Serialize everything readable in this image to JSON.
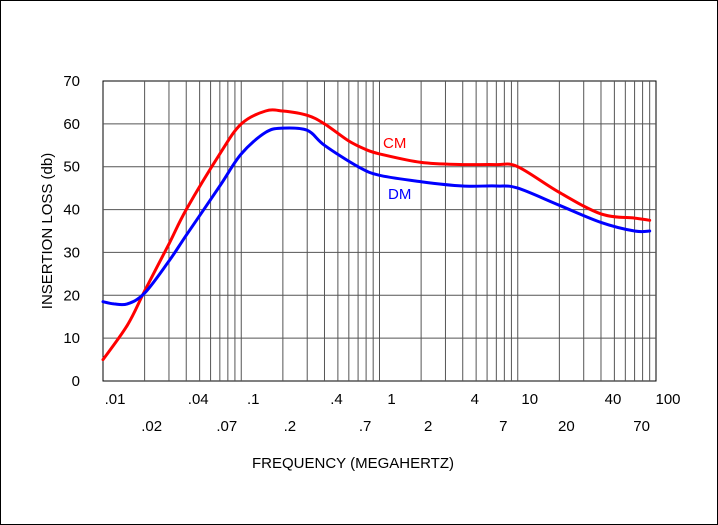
{
  "chart_data": {
    "type": "line",
    "xlabel": "FREQUENCY (MEGAHERTZ)",
    "ylabel": "INSERTION LOSS (db)",
    "x_scale": "log",
    "xlim": [
      0.01,
      100
    ],
    "ylim": [
      0,
      70
    ],
    "grid": true,
    "x_ticks_upper": [
      ".01",
      ".04",
      ".1",
      ".4",
      "1",
      "4",
      "10",
      "40",
      "100"
    ],
    "x_ticks_upper_values": [
      0.01,
      0.04,
      0.1,
      0.4,
      1,
      4,
      10,
      40,
      100
    ],
    "x_ticks_lower": [
      ".02",
      ".07",
      ".2",
      ".7",
      "2",
      "7",
      "20",
      "70"
    ],
    "x_ticks_lower_values": [
      0.02,
      0.07,
      0.2,
      0.7,
      2,
      7,
      20,
      70
    ],
    "y_ticks": [
      "0",
      "10",
      "20",
      "30",
      "40",
      "50",
      "60",
      "70"
    ],
    "y_tick_values": [
      0,
      10,
      20,
      30,
      40,
      50,
      60,
      70
    ],
    "series": [
      {
        "name": "CM",
        "color": "#ff0000",
        "x": [
          0.01,
          0.015,
          0.02,
          0.03,
          0.04,
          0.07,
          0.1,
          0.15,
          0.2,
          0.3,
          0.4,
          0.6,
          0.8,
          1,
          2,
          4,
          7,
          10,
          20,
          40,
          70,
          90
        ],
        "y": [
          5,
          13,
          21,
          32,
          40,
          53,
          60,
          63,
          63,
          62,
          60,
          56,
          54,
          53,
          51,
          50.5,
          50.5,
          50,
          44,
          39,
          38,
          37.5
        ]
      },
      {
        "name": "DM",
        "color": "#0000ff",
        "x": [
          0.01,
          0.012,
          0.015,
          0.02,
          0.03,
          0.04,
          0.07,
          0.1,
          0.15,
          0.2,
          0.3,
          0.4,
          0.7,
          1,
          2,
          4,
          7,
          10,
          20,
          40,
          70,
          90
        ],
        "y": [
          18.5,
          18,
          18,
          20.5,
          28,
          34,
          45.5,
          53,
          58,
          59,
          58.5,
          55,
          50,
          48,
          46.5,
          45.5,
          45.5,
          45,
          41,
          37,
          35,
          35
        ]
      }
    ]
  }
}
